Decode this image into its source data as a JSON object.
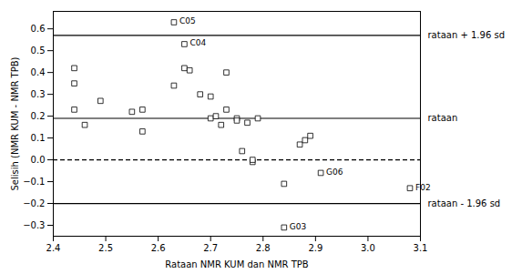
{
  "chart_data": {
    "type": "scatter",
    "x": [
      2.44,
      2.44,
      2.44,
      2.46,
      2.49,
      2.55,
      2.57,
      2.57,
      2.63,
      2.65,
      2.63,
      2.65,
      2.66,
      2.68,
      2.7,
      2.7,
      2.71,
      2.72,
      2.73,
      2.73,
      2.75,
      2.75,
      2.76,
      2.77,
      2.78,
      2.78,
      2.79,
      2.84,
      2.87,
      2.88,
      2.89,
      2.91,
      3.08,
      2.84
    ],
    "values": [
      0.23,
      0.35,
      0.42,
      0.16,
      0.27,
      0.22,
      0.23,
      0.13,
      0.63,
      0.53,
      0.34,
      0.42,
      0.41,
      0.3,
      0.29,
      0.19,
      0.2,
      0.16,
      0.4,
      0.23,
      0.19,
      0.18,
      0.04,
      0.17,
      -0.01,
      0.0,
      0.19,
      -0.11,
      0.07,
      0.09,
      0.11,
      -0.06,
      -0.13,
      -0.31
    ],
    "point_labels": [
      null,
      null,
      null,
      null,
      null,
      null,
      null,
      null,
      "C05",
      "C04",
      null,
      null,
      null,
      null,
      null,
      null,
      null,
      null,
      null,
      null,
      null,
      null,
      null,
      null,
      null,
      null,
      null,
      null,
      null,
      null,
      null,
      "G06",
      "F02",
      "G03"
    ],
    "color": "#000000",
    "marker": "square",
    "reference_lines": [
      {
        "value": 0.57,
        "label": "rataan + 1.96 sd",
        "line_style": "solid",
        "color": "#000000"
      },
      {
        "value": 0.19,
        "label": "rataan",
        "line_style": "solid",
        "color": "#000000"
      },
      {
        "value": -0.2,
        "label": "rataan - 1.96 sd",
        "line_style": "solid",
        "color": "#000000"
      },
      {
        "value": 0.0,
        "line_style": "dashed",
        "color": "#000000"
      }
    ],
    "xlim": [
      2.4,
      3.1
    ],
    "ylim": [
      -0.35,
      0.68
    ],
    "xticks": [
      2.4,
      2.5,
      2.6,
      2.7,
      2.8,
      2.9,
      {
        "value": 3,
        "label": "3.0"
      },
      3.1
    ],
    "yticks": [
      -0.3,
      -0.2,
      -0.1,
      {
        "value": 0,
        "label": "0.0"
      },
      0.1,
      0.2,
      0.3,
      0.4,
      0.5,
      0.6
    ],
    "xlabel": "Rataan NMR KUM dan NMR TPB",
    "ylabel": "Selisih (NMR KUM - NMR TPB)",
    "grid": false
  }
}
